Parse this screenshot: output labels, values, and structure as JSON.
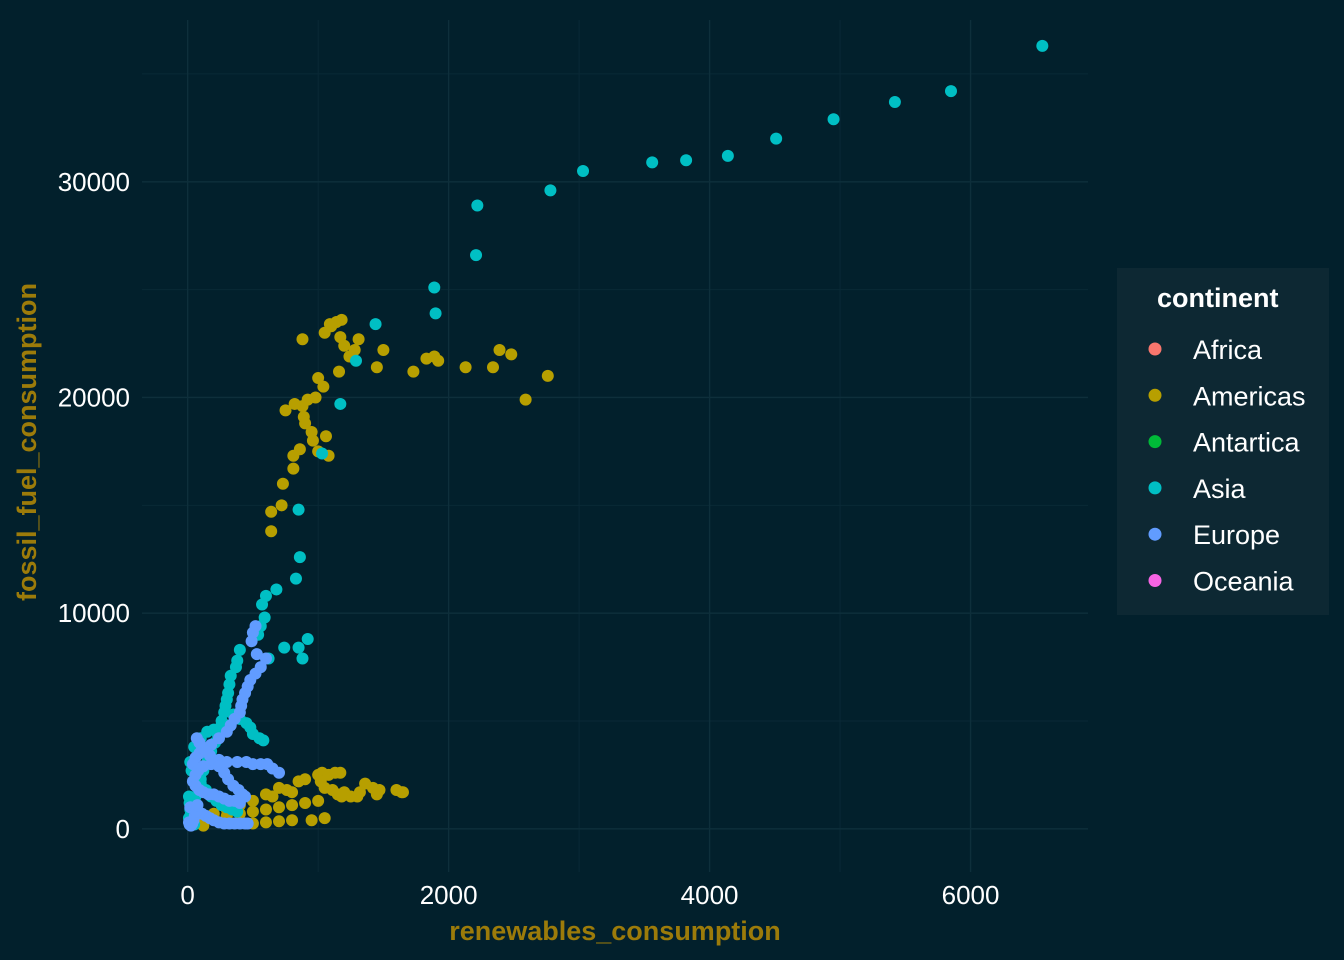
{
  "chart_data": {
    "type": "scatter",
    "title": "",
    "xlabel": "renewables_consumption",
    "ylabel": "fossil_fuel_consumption",
    "xlim": [
      -350,
      6900
    ],
    "ylim": [
      -2000,
      37500
    ],
    "x_ticks": [
      0,
      2000,
      4000,
      6000
    ],
    "y_ticks": [
      0,
      10000,
      20000,
      30000
    ],
    "grid": true,
    "legend": {
      "title": "continent",
      "position": "right"
    },
    "background": "#02202c",
    "legend_background": "#0d2833",
    "axis_title_color": "#9c7b0a",
    "series": [
      {
        "name": "Africa",
        "color": "#f8766d",
        "points": []
      },
      {
        "name": "Americas",
        "color": "#b79f00",
        "points": [
          [
            880,
            22700
          ],
          [
            1050,
            23000
          ],
          [
            1090,
            23400
          ],
          [
            1140,
            23500
          ],
          [
            1180,
            23600
          ],
          [
            1100,
            23300
          ],
          [
            1170,
            22800
          ],
          [
            1200,
            22400
          ],
          [
            1240,
            21900
          ],
          [
            1280,
            22200
          ],
          [
            1310,
            22700
          ],
          [
            1160,
            21200
          ],
          [
            1500,
            22200
          ],
          [
            1450,
            21400
          ],
          [
            1730,
            21200
          ],
          [
            1830,
            21800
          ],
          [
            1890,
            21900
          ],
          [
            1920,
            21700
          ],
          [
            2130,
            21400
          ],
          [
            2340,
            21400
          ],
          [
            2390,
            22200
          ],
          [
            2480,
            22000
          ],
          [
            2760,
            21000
          ],
          [
            2590,
            19900
          ],
          [
            1000,
            20900
          ],
          [
            1040,
            20500
          ],
          [
            980,
            20000
          ],
          [
            920,
            19900
          ],
          [
            880,
            19600
          ],
          [
            820,
            19700
          ],
          [
            750,
            19400
          ],
          [
            890,
            19100
          ],
          [
            900,
            18800
          ],
          [
            950,
            18400
          ],
          [
            960,
            18000
          ],
          [
            1060,
            18200
          ],
          [
            1000,
            17500
          ],
          [
            1080,
            17300
          ],
          [
            860,
            17600
          ],
          [
            810,
            17300
          ],
          [
            810,
            16700
          ],
          [
            730,
            16000
          ],
          [
            720,
            15000
          ],
          [
            640,
            14700
          ],
          [
            640,
            13800
          ],
          [
            1000,
            2500
          ],
          [
            1030,
            2600
          ],
          [
            1080,
            2500
          ],
          [
            1130,
            2600
          ],
          [
            1170,
            2600
          ],
          [
            900,
            2300
          ],
          [
            850,
            2200
          ],
          [
            700,
            1900
          ],
          [
            760,
            1800
          ],
          [
            800,
            1700
          ],
          [
            650,
            1500
          ],
          [
            600,
            1600
          ],
          [
            500,
            1300
          ],
          [
            400,
            1100
          ],
          [
            300,
            900
          ],
          [
            200,
            700
          ],
          [
            100,
            500
          ],
          [
            1020,
            2200
          ],
          [
            1050,
            1900
          ],
          [
            1110,
            1800
          ],
          [
            1150,
            1600
          ],
          [
            1200,
            1700
          ],
          [
            1250,
            1500
          ],
          [
            1320,
            1700
          ],
          [
            1360,
            2100
          ],
          [
            1420,
            1900
          ],
          [
            1470,
            1800
          ],
          [
            1600,
            1800
          ],
          [
            1640,
            1700
          ],
          [
            1650,
            1700
          ],
          [
            1450,
            1600
          ],
          [
            1300,
            1500
          ],
          [
            1180,
            1500
          ],
          [
            1000,
            1300
          ],
          [
            900,
            1200
          ],
          [
            800,
            1100
          ],
          [
            700,
            1000
          ],
          [
            600,
            900
          ],
          [
            500,
            800
          ],
          [
            400,
            700
          ],
          [
            300,
            600
          ],
          [
            200,
            500
          ],
          [
            950,
            400
          ],
          [
            1050,
            500
          ],
          [
            800,
            400
          ],
          [
            700,
            350
          ],
          [
            600,
            300
          ],
          [
            500,
            250
          ],
          [
            60,
            300
          ],
          [
            30,
            200
          ],
          [
            120,
            150
          ]
        ]
      },
      {
        "name": "Antartica",
        "color": "#00ba38",
        "points": []
      },
      {
        "name": "Asia",
        "color": "#00bfc4",
        "points": [
          [
            6550,
            36300
          ],
          [
            5850,
            34200
          ],
          [
            5420,
            33700
          ],
          [
            4950,
            32900
          ],
          [
            4510,
            32000
          ],
          [
            4140,
            31200
          ],
          [
            3820,
            31000
          ],
          [
            3560,
            30900
          ],
          [
            3030,
            30500
          ],
          [
            2780,
            29600
          ],
          [
            2220,
            28900
          ],
          [
            2210,
            26600
          ],
          [
            1890,
            25100
          ],
          [
            1900,
            23900
          ],
          [
            1440,
            23400
          ],
          [
            1290,
            21700
          ],
          [
            1170,
            19700
          ],
          [
            1030,
            17400
          ],
          [
            850,
            14800
          ],
          [
            860,
            12600
          ],
          [
            830,
            11600
          ],
          [
            680,
            11100
          ],
          [
            600,
            10800
          ],
          [
            570,
            10400
          ],
          [
            590,
            9800
          ],
          [
            560,
            9400
          ],
          [
            540,
            9000
          ],
          [
            920,
            8800
          ],
          [
            850,
            8400
          ],
          [
            880,
            7900
          ],
          [
            740,
            8400
          ],
          [
            620,
            7900
          ],
          [
            400,
            8300
          ],
          [
            380,
            7800
          ],
          [
            370,
            7500
          ],
          [
            330,
            7100
          ],
          [
            320,
            6700
          ],
          [
            310,
            6300
          ],
          [
            300,
            6000
          ],
          [
            290,
            5700
          ],
          [
            280,
            5400
          ],
          [
            260,
            5000
          ],
          [
            250,
            4700
          ],
          [
            230,
            4400
          ],
          [
            210,
            4000
          ],
          [
            180,
            3600
          ],
          [
            150,
            3100
          ],
          [
            120,
            2700
          ],
          [
            100,
            2300
          ],
          [
            80,
            1900
          ],
          [
            60,
            1500
          ],
          [
            40,
            1100
          ],
          [
            20,
            600
          ],
          [
            350,
            5300
          ],
          [
            400,
            5100
          ],
          [
            450,
            4900
          ],
          [
            480,
            4700
          ],
          [
            500,
            4400
          ],
          [
            550,
            4200
          ],
          [
            580,
            4100
          ],
          [
            300,
            4800
          ],
          [
            200,
            4600
          ],
          [
            150,
            4500
          ],
          [
            100,
            4200
          ],
          [
            50,
            3800
          ],
          [
            20,
            3100
          ],
          [
            30,
            2700
          ],
          [
            60,
            2500
          ],
          [
            100,
            2100
          ],
          [
            140,
            1800
          ],
          [
            180,
            1500
          ],
          [
            220,
            1300
          ],
          [
            260,
            1100
          ],
          [
            300,
            1000
          ],
          [
            340,
            900
          ],
          [
            380,
            800
          ],
          [
            10,
            1500
          ],
          [
            15,
            1200
          ],
          [
            20,
            900
          ],
          [
            10,
            500
          ],
          [
            30,
            300
          ],
          [
            50,
            200
          ]
        ]
      },
      {
        "name": "Europe",
        "color": "#619cff",
        "points": [
          [
            520,
            9400
          ],
          [
            500,
            9100
          ],
          [
            490,
            8700
          ],
          [
            530,
            8100
          ],
          [
            600,
            7900
          ],
          [
            560,
            7500
          ],
          [
            520,
            7200
          ],
          [
            480,
            6900
          ],
          [
            460,
            6600
          ],
          [
            440,
            6300
          ],
          [
            420,
            6000
          ],
          [
            410,
            5700
          ],
          [
            400,
            5400
          ],
          [
            360,
            5100
          ],
          [
            330,
            4800
          ],
          [
            300,
            4500
          ],
          [
            240,
            4200
          ],
          [
            180,
            3900
          ],
          [
            130,
            3700
          ],
          [
            90,
            3500
          ],
          [
            60,
            3300
          ],
          [
            40,
            3000
          ],
          [
            240,
            3200
          ],
          [
            300,
            3100
          ],
          [
            380,
            3100
          ],
          [
            450,
            3100
          ],
          [
            500,
            3000
          ],
          [
            560,
            3000
          ],
          [
            610,
            3000
          ],
          [
            650,
            2800
          ],
          [
            700,
            2600
          ],
          [
            180,
            3000
          ],
          [
            120,
            2900
          ],
          [
            80,
            2700
          ],
          [
            60,
            2500
          ],
          [
            70,
            4200
          ],
          [
            90,
            4000
          ],
          [
            110,
            3800
          ],
          [
            140,
            3600
          ],
          [
            170,
            3400
          ],
          [
            210,
            3100
          ],
          [
            240,
            2900
          ],
          [
            280,
            2600
          ],
          [
            310,
            2300
          ],
          [
            350,
            2000
          ],
          [
            390,
            1800
          ],
          [
            420,
            1600
          ],
          [
            440,
            1500
          ],
          [
            40,
            2200
          ],
          [
            60,
            2000
          ],
          [
            90,
            1800
          ],
          [
            120,
            1700
          ],
          [
            160,
            1600
          ],
          [
            200,
            1600
          ],
          [
            240,
            1500
          ],
          [
            280,
            1400
          ],
          [
            320,
            1300
          ],
          [
            360,
            1300
          ],
          [
            400,
            1200
          ],
          [
            20,
            1000
          ],
          [
            50,
            900
          ],
          [
            80,
            800
          ],
          [
            110,
            700
          ],
          [
            140,
            600
          ],
          [
            170,
            500
          ],
          [
            200,
            400
          ],
          [
            240,
            300
          ],
          [
            280,
            250
          ],
          [
            320,
            250
          ],
          [
            360,
            250
          ],
          [
            400,
            250
          ],
          [
            440,
            250
          ],
          [
            460,
            250
          ],
          [
            10,
            300
          ],
          [
            15,
            200
          ],
          [
            25,
            150
          ],
          [
            35,
            250
          ],
          [
            45,
            400
          ],
          [
            55,
            600
          ],
          [
            65,
            800
          ],
          [
            75,
            1100
          ]
        ]
      },
      {
        "name": "Oceania",
        "color": "#f564e3",
        "points": []
      }
    ]
  }
}
